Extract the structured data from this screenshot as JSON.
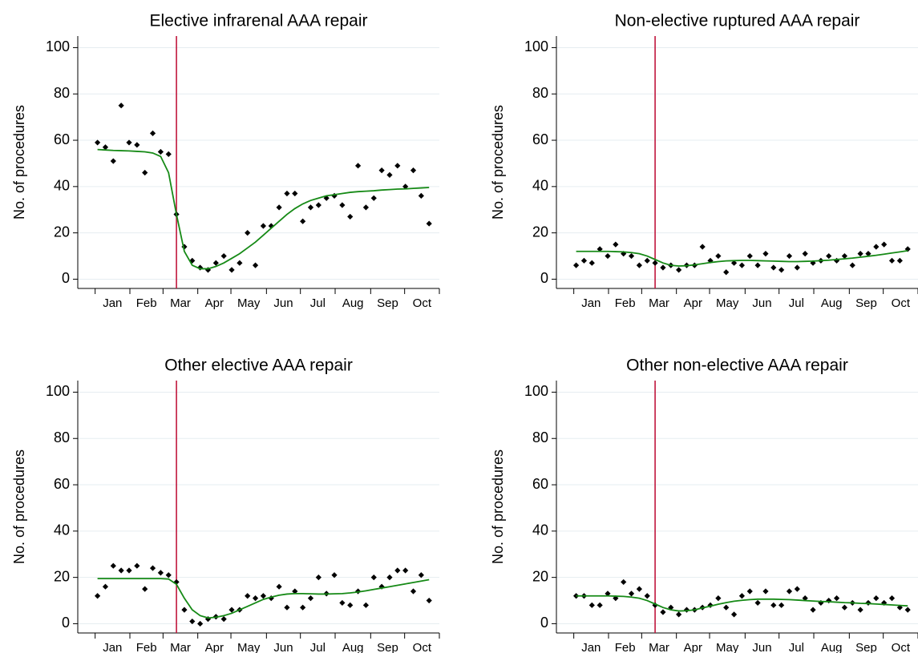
{
  "chart_data": [
    {
      "type": "scatter",
      "title": "Elective infrarenal AAA repair",
      "ylabel": "No. of procedures",
      "x": [
        1,
        2,
        3,
        4,
        5,
        6,
        7,
        8,
        9,
        10,
        11,
        12,
        13,
        14,
        15,
        16,
        17,
        18,
        19,
        20,
        21,
        22,
        23,
        24,
        25,
        26,
        27,
        28,
        29,
        30,
        31,
        32,
        33,
        34,
        35,
        36,
        37,
        38,
        39,
        40,
        41,
        42,
        43
      ],
      "values": [
        59,
        57,
        51,
        75,
        59,
        58,
        46,
        63,
        55,
        54,
        28,
        14,
        8,
        5,
        4,
        7,
        10,
        4,
        7,
        20,
        6,
        23,
        23,
        31,
        37,
        37,
        25,
        31,
        32,
        35,
        36,
        32,
        27,
        49,
        31,
        35,
        47,
        45,
        49,
        40,
        47,
        36,
        24
      ],
      "fitted": [
        56,
        55.8,
        55.6,
        55.5,
        55.4,
        55.2,
        55,
        54.5,
        53,
        46,
        28,
        12,
        6,
        4.5,
        4.5,
        5.5,
        7,
        9,
        11,
        13.5,
        16,
        19,
        22,
        25,
        28,
        30.5,
        32.5,
        34,
        35,
        36,
        36.5,
        37,
        37.5,
        37.8,
        38,
        38.2,
        38.5,
        38.7,
        38.9,
        39,
        39.2,
        39.4,
        39.6
      ],
      "categories": [
        "Jan",
        "Feb",
        "Mar",
        "Apr",
        "May",
        "Jun",
        "Jul",
        "Aug",
        "Sep",
        "Oct"
      ],
      "xticks": [
        0.7,
        5.1,
        9.3,
        13.7,
        17.9,
        22.4,
        26.7,
        31.1,
        35.6,
        39.9,
        44.3
      ],
      "xlim": [
        -1.5,
        44.3
      ],
      "ylim": [
        -4,
        105
      ],
      "yticks": [
        0,
        20,
        40,
        60,
        80,
        100
      ],
      "grid": true,
      "color": "#000000",
      "fit_color": "#168a16",
      "event_x": 11,
      "event_color": "#c0163c"
    },
    {
      "type": "scatter",
      "title": "Non-elective ruptured AAA repair",
      "ylabel": "No. of procedures",
      "x": [
        1,
        2,
        3,
        4,
        5,
        6,
        7,
        8,
        9,
        10,
        11,
        12,
        13,
        14,
        15,
        16,
        17,
        18,
        19,
        20,
        21,
        22,
        23,
        24,
        25,
        26,
        27,
        28,
        29,
        30,
        31,
        32,
        33,
        34,
        35,
        36,
        37,
        38,
        39,
        40,
        41,
        42,
        43
      ],
      "values": [
        6,
        8,
        7,
        13,
        10,
        15,
        11,
        10,
        6,
        8,
        7,
        5,
        6,
        4,
        6,
        6,
        14,
        8,
        10,
        3,
        7,
        6,
        10,
        6,
        11,
        5,
        4,
        10,
        5,
        11,
        7,
        8,
        10,
        8,
        10,
        6,
        11,
        11,
        14,
        15,
        8,
        8,
        13
      ],
      "fitted": [
        12,
        12,
        12,
        12,
        12,
        11.9,
        11.8,
        11.5,
        11,
        10,
        8.5,
        7,
        6,
        5.7,
        5.8,
        6.2,
        6.7,
        7.2,
        7.6,
        7.9,
        8,
        8.1,
        8.1,
        8,
        7.9,
        7.8,
        7.7,
        7.6,
        7.6,
        7.7,
        7.8,
        8,
        8.2,
        8.5,
        8.8,
        9.1,
        9.5,
        9.9,
        10.3,
        10.8,
        11.3,
        11.8,
        12.3
      ],
      "categories": [
        "Jan",
        "Feb",
        "Mar",
        "Apr",
        "May",
        "Jun",
        "Jul",
        "Aug",
        "Sep",
        "Oct"
      ],
      "xticks": [
        0.7,
        5.1,
        9.3,
        13.7,
        17.9,
        22.4,
        26.7,
        31.1,
        35.6,
        39.9,
        44.3
      ],
      "xlim": [
        -1.5,
        44.3
      ],
      "ylim": [
        -4,
        105
      ],
      "yticks": [
        0,
        20,
        40,
        60,
        80,
        100
      ],
      "grid": true,
      "color": "#000000",
      "fit_color": "#168a16",
      "event_x": 11,
      "event_color": "#c0163c"
    },
    {
      "type": "scatter",
      "title": "Other elective AAA repair",
      "ylabel": "No. of procedures",
      "x": [
        1,
        2,
        3,
        4,
        5,
        6,
        7,
        8,
        9,
        10,
        11,
        12,
        13,
        14,
        15,
        16,
        17,
        18,
        19,
        20,
        21,
        22,
        23,
        24,
        25,
        26,
        27,
        28,
        29,
        30,
        31,
        32,
        33,
        34,
        35,
        36,
        37,
        38,
        39,
        40,
        41,
        42,
        43
      ],
      "values": [
        12,
        16,
        25,
        23,
        23,
        25,
        15,
        24,
        22,
        21,
        18,
        6,
        1,
        0,
        2,
        3,
        2,
        6,
        6,
        12,
        11,
        12,
        11,
        16,
        7,
        14,
        7,
        11,
        20,
        13,
        21,
        9,
        8,
        14,
        8,
        20,
        16,
        20,
        23,
        23,
        14,
        21,
        10
      ],
      "fitted": [
        19.5,
        19.5,
        19.5,
        19.5,
        19.5,
        19.5,
        19.5,
        19.5,
        19.5,
        19.3,
        17,
        11,
        6,
        3.5,
        2.5,
        2.8,
        3.5,
        4.5,
        6,
        7.5,
        9,
        10.5,
        11.5,
        12.3,
        12.8,
        13,
        13,
        12.9,
        12.8,
        12.8,
        12.9,
        13,
        13.3,
        13.7,
        14.2,
        14.8,
        15.4,
        16,
        16.6,
        17.2,
        17.8,
        18.4,
        19
      ],
      "categories": [
        "Jan",
        "Feb",
        "Mar",
        "Apr",
        "May",
        "Jun",
        "Jul",
        "Aug",
        "Sep",
        "Oct"
      ],
      "xticks": [
        0.7,
        5.1,
        9.3,
        13.7,
        17.9,
        22.4,
        26.7,
        31.1,
        35.6,
        39.9,
        44.3
      ],
      "xlim": [
        -1.5,
        44.3
      ],
      "ylim": [
        -4,
        105
      ],
      "yticks": [
        0,
        20,
        40,
        60,
        80,
        100
      ],
      "grid": true,
      "color": "#000000",
      "fit_color": "#168a16",
      "event_x": 11,
      "event_color": "#c0163c"
    },
    {
      "type": "scatter",
      "title": "Other non-elective AAA repair",
      "ylabel": "No. of procedures",
      "x": [
        1,
        2,
        3,
        4,
        5,
        6,
        7,
        8,
        9,
        10,
        11,
        12,
        13,
        14,
        15,
        16,
        17,
        18,
        19,
        20,
        21,
        22,
        23,
        24,
        25,
        26,
        27,
        28,
        29,
        30,
        31,
        32,
        33,
        34,
        35,
        36,
        37,
        38,
        39,
        40,
        41,
        42,
        43
      ],
      "values": [
        12,
        12,
        8,
        8,
        13,
        11,
        18,
        13,
        15,
        12,
        8,
        5,
        7,
        4,
        6,
        6,
        7,
        8,
        11,
        7,
        4,
        12,
        14,
        9,
        14,
        8,
        8,
        14,
        15,
        11,
        6,
        9,
        10,
        11,
        7,
        9,
        6,
        9,
        11,
        9,
        11,
        7,
        6
      ],
      "fitted": [
        12,
        12,
        12,
        12,
        12,
        11.9,
        11.8,
        11.5,
        11,
        10,
        8.5,
        7,
        6,
        5.5,
        5.6,
        6,
        6.8,
        7.6,
        8.4,
        9.1,
        9.7,
        10.1,
        10.4,
        10.6,
        10.6,
        10.6,
        10.5,
        10.4,
        10.2,
        10,
        9.8,
        9.6,
        9.5,
        9.3,
        9.1,
        9,
        8.8,
        8.7,
        8.5,
        8.3,
        8.1,
        7.9,
        7.7
      ],
      "categories": [
        "Jan",
        "Feb",
        "Mar",
        "Apr",
        "May",
        "Jun",
        "Jul",
        "Aug",
        "Sep",
        "Oct"
      ],
      "xticks": [
        0.7,
        5.1,
        9.3,
        13.7,
        17.9,
        22.4,
        26.7,
        31.1,
        35.6,
        39.9,
        44.3
      ],
      "xlim": [
        -1.5,
        44.3
      ],
      "ylim": [
        -4,
        105
      ],
      "yticks": [
        0,
        20,
        40,
        60,
        80,
        100
      ],
      "grid": true,
      "color": "#000000",
      "fit_color": "#168a16",
      "event_x": 11,
      "event_color": "#c0163c"
    }
  ]
}
